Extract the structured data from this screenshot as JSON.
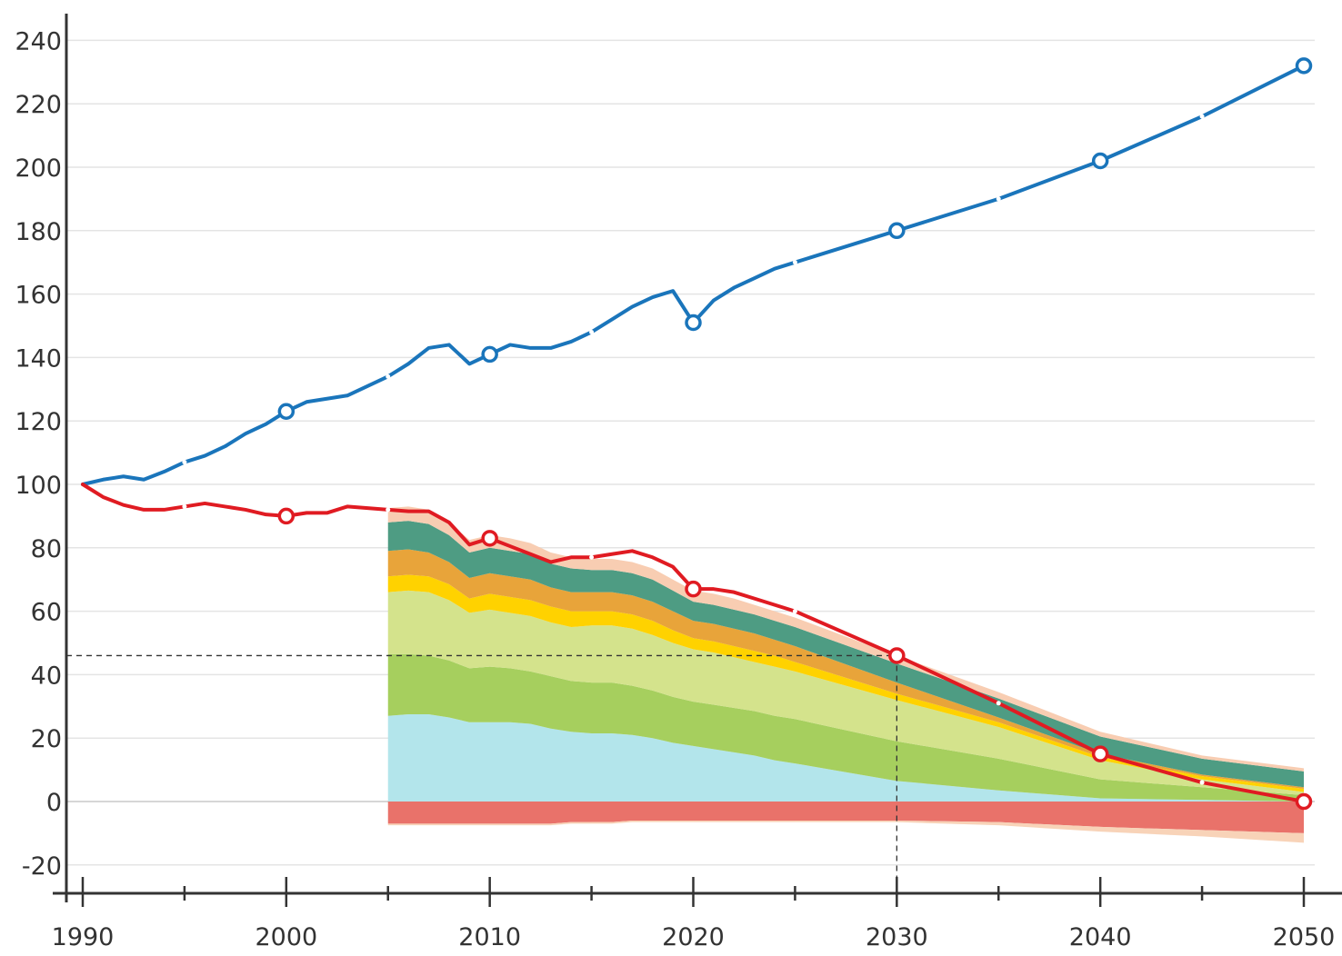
{
  "chart_data": {
    "type": "area",
    "title": "",
    "xlabel": "",
    "ylabel": "",
    "xlim": [
      1990,
      2050
    ],
    "ylim": [
      -25,
      250
    ],
    "x_ticks": [
      1990,
      2000,
      2010,
      2020,
      2030,
      2040,
      2050
    ],
    "x_tick_labels": [
      "1990",
      "2000",
      "2010",
      "2020",
      "2030",
      "2040",
      "2050"
    ],
    "y_ticks": [
      -20,
      0,
      20,
      40,
      60,
      80,
      100,
      120,
      140,
      160,
      180,
      200,
      220,
      240
    ],
    "y_tick_labels": [
      "-20",
      "0",
      "20",
      "40",
      "60",
      "80",
      "100",
      "120",
      "140",
      "160",
      "180",
      "200",
      "220",
      "240"
    ],
    "grid": "horizontal",
    "reference_point": {
      "x": 2030,
      "y": 46
    },
    "lines": [
      {
        "color": "#1a75bb",
        "x": [
          1990,
          1991,
          1992,
          1993,
          1994,
          1995,
          1996,
          1997,
          1998,
          1999,
          2000,
          2001,
          2002,
          2003,
          2004,
          2005,
          2006,
          2007,
          2008,
          2009,
          2010,
          2011,
          2012,
          2013,
          2014,
          2015,
          2016,
          2017,
          2018,
          2019,
          2020,
          2021,
          2022,
          2023,
          2024,
          2025,
          2030,
          2035,
          2040,
          2045,
          2050
        ],
        "y": [
          100,
          101.5,
          102.5,
          101.5,
          104,
          107,
          109,
          112,
          116,
          119,
          123,
          126,
          127,
          128,
          131,
          134,
          138,
          143,
          144,
          138,
          141,
          144,
          143,
          143,
          145,
          148,
          152,
          156,
          159,
          161,
          151,
          158,
          162,
          165,
          168,
          170,
          180,
          190,
          202,
          216,
          232
        ]
      },
      {
        "color": "#e01b22",
        "x": [
          1990,
          1991,
          1992,
          1993,
          1994,
          1995,
          1996,
          1997,
          1998,
          1999,
          2000,
          2001,
          2002,
          2003,
          2004,
          2005,
          2006,
          2007,
          2008,
          2009,
          2010,
          2011,
          2012,
          2013,
          2014,
          2015,
          2016,
          2017,
          2018,
          2019,
          2020,
          2021,
          2022,
          2023,
          2024,
          2025,
          2030,
          2035,
          2040,
          2045,
          2050
        ],
        "y": [
          100,
          96,
          93.5,
          92,
          92,
          93,
          94,
          93,
          92,
          90.5,
          90,
          91,
          91,
          93,
          92.5,
          92,
          91.5,
          91.5,
          88,
          81,
          83,
          80.5,
          78,
          75.5,
          77,
          77,
          78,
          79,
          77,
          74,
          67,
          67,
          66,
          64,
          62,
          60,
          46,
          31,
          15,
          6,
          0
        ]
      }
    ],
    "line_markers": [
      {
        "color": "#1a75bb",
        "x": [
          2000,
          2010,
          2020,
          2030,
          2040,
          2050
        ],
        "y": [
          123,
          141,
          151,
          180,
          202,
          232
        ]
      },
      {
        "color": "#e01b22",
        "x": [
          2000,
          2010,
          2020,
          2030,
          2040,
          2050
        ],
        "y": [
          90,
          83,
          67,
          46,
          15,
          0
        ]
      }
    ],
    "stacked_areas": {
      "x": [
        2005,
        2006,
        2007,
        2008,
        2009,
        2010,
        2011,
        2012,
        2013,
        2014,
        2015,
        2016,
        2017,
        2018,
        2019,
        2020,
        2021,
        2022,
        2023,
        2024,
        2025,
        2030,
        2035,
        2040,
        2045,
        2050
      ],
      "positive": [
        {
          "color": "#b3e5eb",
          "values": [
            27,
            27.5,
            27.5,
            26.5,
            25,
            25,
            25,
            24.5,
            23,
            22,
            21.5,
            21.5,
            21,
            20,
            18.5,
            17.5,
            16.5,
            15.5,
            14.5,
            13,
            12,
            6.5,
            3.5,
            1,
            0.5,
            0
          ]
        },
        {
          "color": "#a6cf5e",
          "values": [
            19.5,
            19,
            18.5,
            18,
            17,
            17.5,
            17,
            16.5,
            16.5,
            16,
            16,
            16,
            15.5,
            15,
            14.5,
            14,
            14,
            14,
            14,
            14,
            14,
            12.5,
            10,
            6,
            4,
            2
          ]
        },
        {
          "color": "#d4e38c",
          "values": [
            19.5,
            20,
            20,
            19,
            17.5,
            18,
            17.5,
            17.5,
            17,
            17,
            18,
            18,
            18,
            17.5,
            17,
            16.5,
            16.5,
            16,
            15.5,
            15.5,
            15,
            13,
            10,
            6,
            2.5,
            1
          ]
        },
        {
          "color": "#ffd200",
          "values": [
            5,
            5,
            5,
            5,
            4.5,
            5,
            5,
            5,
            5,
            5,
            4.5,
            4.5,
            4.5,
            4.5,
            4,
            3.5,
            3.5,
            3.5,
            3.5,
            3.5,
            3,
            2,
            1.5,
            1,
            1,
            1
          ]
        },
        {
          "color": "#e8a43a",
          "values": [
            8,
            8,
            7.5,
            7,
            6.5,
            6.5,
            6.5,
            6.5,
            6,
            6,
            6,
            6,
            6,
            6,
            6,
            5.5,
            5.5,
            5.5,
            5.5,
            5,
            5,
            3.5,
            1.5,
            1,
            0.5,
            0.5
          ]
        },
        {
          "color": "#4e9c83",
          "values": [
            9,
            9,
            9,
            8.5,
            8,
            8,
            8,
            8,
            7.5,
            7.5,
            7,
            7,
            7,
            7,
            6.5,
            6,
            6,
            6,
            6,
            6,
            6,
            6,
            6,
            5.5,
            5,
            5
          ]
        },
        {
          "color": "#f8cdb2",
          "values": [
            4.5,
            4.5,
            4.5,
            4,
            4,
            4,
            4,
            3.5,
            3.5,
            3.5,
            3.5,
            3.5,
            3.5,
            3.5,
            3.5,
            3.5,
            3.5,
            3.5,
            3,
            3,
            3,
            2.5,
            2,
            1.5,
            1,
            1
          ]
        }
      ],
      "negative": [
        {
          "color": "#e9726a",
          "values": [
            -7,
            -7,
            -7,
            -7,
            -7,
            -7,
            -7,
            -7,
            -7,
            -6.5,
            -6.5,
            -6.5,
            -6,
            -6,
            -6,
            -6,
            -6,
            -6,
            -6,
            -6,
            -6,
            -6,
            -6.5,
            -8,
            -9,
            -10
          ]
        },
        {
          "color": "#f8d3b8",
          "values": [
            -0.5,
            -0.5,
            -0.5,
            -0.5,
            -0.5,
            -0.5,
            -0.5,
            -0.5,
            -0.5,
            -0.5,
            -0.5,
            -0.5,
            -0.5,
            -0.5,
            -0.5,
            -0.5,
            -0.5,
            -0.5,
            -0.5,
            -0.5,
            -0.5,
            -0.5,
            -1,
            -1.5,
            -2,
            -3
          ]
        }
      ]
    }
  }
}
